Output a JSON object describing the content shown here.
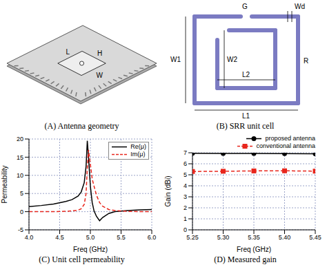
{
  "diagrams": [
    {
      "title": "(A) Antenna geometry",
      "labels": [
        "L",
        "H",
        "W"
      ]
    },
    {
      "title": "(B) SRR unit cell",
      "labels": [
        "G",
        "Wd",
        "W1",
        "W2",
        "L2",
        "L1",
        "R"
      ]
    }
  ],
  "chart_data": [
    {
      "type": "line",
      "title": "(C) Unit cell permeability",
      "x_label": "Freq (GHz)",
      "y_label": "Permeability",
      "x": [
        4.0,
        4.2,
        4.4,
        4.6,
        4.7,
        4.8,
        4.85,
        4.9,
        4.93,
        4.95,
        4.97,
        5.0,
        5.03,
        5.06,
        5.1,
        5.15,
        5.2,
        5.3,
        5.4,
        5.6,
        5.8,
        6.0
      ],
      "series": [
        {
          "name": "Re(μ)",
          "color": "#000000",
          "line_style": "solid",
          "values": [
            1.4,
            1.7,
            2.1,
            2.8,
            3.3,
            4.3,
            5.4,
            8.0,
            12.5,
            19.5,
            15,
            7,
            2.5,
            0.2,
            -1.3,
            -2.5,
            -1.6,
            -0.5,
            0,
            0.3,
            0.5,
            0.6
          ]
        },
        {
          "name": "Im(μ)",
          "color": "#e8261c",
          "line_style": "dashed",
          "values": [
            0,
            0,
            0,
            0.1,
            0.2,
            0.4,
            0.8,
            2,
            5,
            12,
            17,
            13,
            9,
            7,
            4.5,
            2.5,
            1.5,
            0.6,
            0.3,
            0.1,
            0,
            0
          ]
        }
      ],
      "xlim": [
        4,
        6
      ],
      "xticks": [
        {
          "value": 4,
          "label": "4.0"
        },
        4.5,
        {
          "value": 5,
          "label": "5.0"
        },
        5.5,
        {
          "value": 6,
          "label": "6.0"
        }
      ],
      "ylim": [
        -5,
        20
      ],
      "yticks": [
        -5,
        0,
        5,
        10,
        15,
        20
      ],
      "grid": true,
      "legend": "upper right"
    },
    {
      "type": "line",
      "title": "(D) Measured gain",
      "x_label": "Freq (GHz)",
      "y_label": "Gain (dBi)",
      "x": [
        5.25,
        5.3,
        5.35,
        5.4,
        5.45
      ],
      "series": [
        {
          "name": "proposed antenna",
          "color": "#000000",
          "line_style": "solid",
          "marker": "circle",
          "values": [
            6.95,
            6.93,
            6.93,
            6.92,
            6.9
          ]
        },
        {
          "name": "conventional antenna",
          "color": "#e8261c",
          "line_style": "dashed",
          "marker": "square",
          "values": [
            5.3,
            5.32,
            5.35,
            5.36,
            5.33
          ]
        }
      ],
      "xlim": [
        5.25,
        5.45
      ],
      "xticks": [
        5.25,
        {
          "value": 5.3,
          "label": "5.30"
        },
        5.35,
        {
          "value": 5.4,
          "label": "5.40"
        },
        5.45
      ],
      "ylim": [
        0,
        7
      ],
      "yticks": [
        0,
        1,
        2,
        3,
        4,
        5,
        6,
        7
      ],
      "grid": true,
      "legend": "top"
    }
  ]
}
